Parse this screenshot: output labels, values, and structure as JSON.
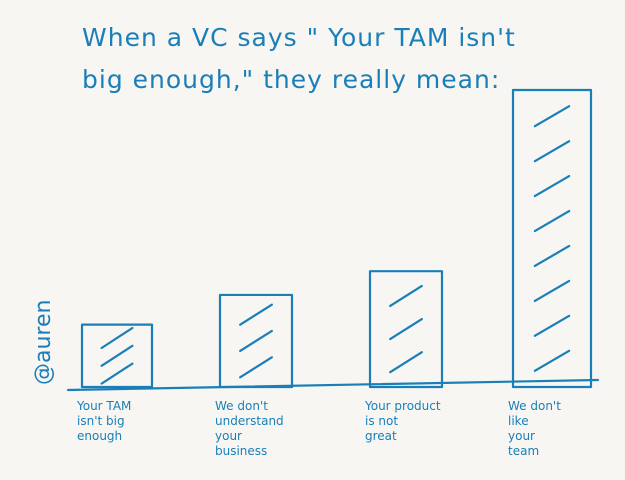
{
  "chart_data": {
    "type": "bar",
    "title_lines": [
      "When a VC says \" Your TAM isn't",
      "big enough,\" they really mean:"
    ],
    "categories": [
      [
        "Your TAM",
        "isn't big",
        "enough"
      ],
      [
        "We don't",
        "understand",
        "your",
        "business"
      ],
      [
        "Your product",
        "is not",
        "great"
      ],
      [
        "We don't",
        "like",
        "your",
        "team"
      ]
    ],
    "values": [
      21,
      31,
      39,
      100
    ],
    "ylim": [
      0,
      100
    ],
    "bar_fill": "hatched",
    "xlabel": "",
    "ylabel": ""
  },
  "signature": "@auren",
  "colors": {
    "ink": "#1a7fb8",
    "paper": "#f7f6f2"
  }
}
